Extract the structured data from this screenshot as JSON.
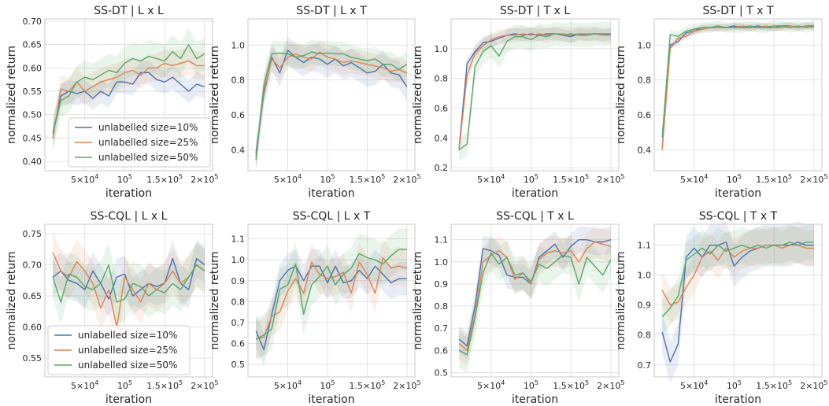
{
  "figure": {
    "xlabel": "iteration",
    "ylabel": "normalized return",
    "xticks": [
      {
        "x": 50000,
        "mant": "5×10",
        "exp": "4"
      },
      {
        "x": 100000,
        "mant": "10",
        "exp": "5"
      },
      {
        "x": 150000,
        "mant": "1.5×10",
        "exp": "5"
      },
      {
        "x": 200000,
        "mant": "2×10",
        "exp": "5"
      }
    ],
    "xlim": [
      0,
      210000
    ],
    "colors": {
      "s10": "#4c72b0",
      "s25": "#dd8452",
      "s50": "#55a868"
    },
    "legend_labels": [
      "unlabelled size=10%",
      "unlabelled size=25%",
      "unlabelled size=50%"
    ]
  },
  "chart_data": [
    {
      "type": "line",
      "title": "SS-DT | L x L",
      "xlabel": "iteration",
      "ylabel": "normalized return",
      "ylim": [
        0.38,
        0.705
      ],
      "yticks": [
        0.4,
        0.45,
        0.5,
        0.55,
        0.6,
        0.65,
        0.7
      ],
      "legend": "lower-center",
      "x": [
        10000,
        20000,
        30000,
        40000,
        50000,
        60000,
        70000,
        80000,
        90000,
        100000,
        110000,
        120000,
        130000,
        140000,
        150000,
        160000,
        170000,
        180000,
        190000,
        200000
      ],
      "series": [
        {
          "name": "unlabelled size=10%",
          "color": "#4c72b0",
          "band": 0.025,
          "values": [
            0.46,
            0.54,
            0.55,
            0.545,
            0.55,
            0.535,
            0.55,
            0.54,
            0.57,
            0.57,
            0.565,
            0.59,
            0.59,
            0.575,
            0.57,
            0.58,
            0.565,
            0.55,
            0.565,
            0.56
          ]
        },
        {
          "name": "unlabelled size=25%",
          "color": "#dd8452",
          "band": 0.03,
          "values": [
            0.45,
            0.555,
            0.55,
            0.57,
            0.55,
            0.56,
            0.57,
            0.575,
            0.58,
            0.59,
            0.595,
            0.585,
            0.6,
            0.6,
            0.61,
            0.605,
            0.61,
            0.615,
            0.605,
            0.605
          ]
        },
        {
          "name": "unlabelled size=50%",
          "color": "#55a868",
          "band": 0.035,
          "values": [
            0.46,
            0.53,
            0.54,
            0.57,
            0.58,
            0.575,
            0.585,
            0.595,
            0.59,
            0.61,
            0.62,
            0.615,
            0.625,
            0.62,
            0.615,
            0.635,
            0.62,
            0.65,
            0.62,
            0.63
          ]
        }
      ]
    },
    {
      "type": "line",
      "title": "SS-DT | L x T",
      "xlabel": "iteration",
      "ylabel": "normalized return",
      "ylim": [
        0.28,
        1.15
      ],
      "yticks": [
        0.4,
        0.6,
        0.8,
        1.0
      ],
      "x": [
        10000,
        20000,
        30000,
        40000,
        50000,
        60000,
        70000,
        80000,
        90000,
        100000,
        110000,
        120000,
        130000,
        140000,
        150000,
        160000,
        170000,
        180000,
        190000,
        200000
      ],
      "series": [
        {
          "name": "unlabelled size=10%",
          "color": "#4c72b0",
          "band": 0.08,
          "values": [
            0.38,
            0.72,
            0.93,
            0.84,
            0.97,
            0.93,
            0.9,
            0.93,
            0.92,
            0.89,
            0.92,
            0.88,
            0.9,
            0.87,
            0.84,
            0.85,
            0.89,
            0.84,
            0.83,
            0.76
          ]
        },
        {
          "name": "unlabelled size=25%",
          "color": "#dd8452",
          "band": 0.07,
          "values": [
            0.36,
            0.74,
            0.92,
            0.87,
            0.93,
            0.95,
            0.93,
            0.92,
            0.96,
            0.93,
            0.92,
            0.9,
            0.91,
            0.9,
            0.89,
            0.88,
            0.87,
            0.85,
            0.86,
            0.84
          ]
        },
        {
          "name": "unlabelled size=50%",
          "color": "#55a868",
          "band": 0.07,
          "values": [
            0.34,
            0.77,
            0.95,
            0.955,
            0.95,
            0.93,
            0.94,
            0.96,
            0.95,
            0.955,
            0.95,
            0.95,
            0.93,
            0.92,
            0.91,
            0.92,
            0.89,
            0.89,
            0.86,
            0.89
          ]
        }
      ]
    },
    {
      "type": "line",
      "title": "SS-DT | T x L",
      "xlabel": "iteration",
      "ylabel": "normalized return",
      "ylim": [
        0.18,
        1.2
      ],
      "yticks": [
        0.2,
        0.4,
        0.6,
        0.8,
        1.0
      ],
      "x": [
        10000,
        20000,
        30000,
        40000,
        50000,
        60000,
        70000,
        80000,
        90000,
        100000,
        110000,
        120000,
        130000,
        140000,
        150000,
        160000,
        170000,
        180000,
        190000,
        200000
      ],
      "series": [
        {
          "name": "unlabelled size=10%",
          "color": "#4c72b0",
          "band": 0.04,
          "values": [
            0.33,
            0.9,
            0.98,
            1.04,
            1.05,
            1.07,
            1.09,
            1.1,
            1.09,
            1.1,
            1.09,
            1.1,
            1.1,
            1.09,
            1.08,
            1.1,
            1.09,
            1.1,
            1.09,
            1.1
          ]
        },
        {
          "name": "unlabelled size=25%",
          "color": "#dd8452",
          "band": 0.05,
          "values": [
            0.32,
            0.82,
            0.97,
            1.02,
            1.06,
            1.08,
            1.09,
            1.09,
            1.1,
            1.09,
            1.1,
            1.09,
            1.1,
            1.1,
            1.09,
            1.1,
            1.1,
            1.1,
            1.09,
            1.09
          ]
        },
        {
          "name": "unlabelled size=50%",
          "color": "#55a868",
          "band": 0.08,
          "values": [
            0.32,
            0.36,
            0.88,
            0.98,
            1.02,
            0.95,
            1.05,
            1.08,
            1.08,
            1.06,
            1.09,
            1.08,
            1.1,
            1.09,
            1.1,
            1.09,
            1.09,
            1.1,
            1.1,
            1.1
          ]
        }
      ]
    },
    {
      "type": "line",
      "title": "SS-DT | T x T",
      "xlabel": "iteration",
      "ylabel": "normalized return",
      "ylim": [
        0.28,
        1.15
      ],
      "yticks": [
        0.4,
        0.6,
        0.8,
        1.0
      ],
      "x": [
        10000,
        20000,
        30000,
        40000,
        50000,
        60000,
        70000,
        80000,
        90000,
        100000,
        110000,
        120000,
        130000,
        140000,
        150000,
        160000,
        170000,
        180000,
        190000,
        200000
      ],
      "series": [
        {
          "name": "unlabelled size=10%",
          "color": "#4c72b0",
          "band": 0.02,
          "values": [
            0.4,
            1.0,
            1.02,
            1.07,
            1.08,
            1.1,
            1.1,
            1.1,
            1.1,
            1.11,
            1.1,
            1.1,
            1.11,
            1.1,
            1.1,
            1.11,
            1.11,
            1.1,
            1.11,
            1.11
          ]
        },
        {
          "name": "unlabelled size=25%",
          "color": "#dd8452",
          "band": 0.02,
          "values": [
            0.4,
            0.98,
            1.04,
            1.05,
            1.08,
            1.09,
            1.1,
            1.1,
            1.1,
            1.1,
            1.11,
            1.1,
            1.1,
            1.11,
            1.1,
            1.1,
            1.11,
            1.1,
            1.11,
            1.1
          ]
        },
        {
          "name": "unlabelled size=50%",
          "color": "#55a868",
          "band": 0.03,
          "values": [
            0.47,
            1.06,
            1.05,
            1.08,
            1.09,
            1.1,
            1.1,
            1.11,
            1.1,
            1.1,
            1.1,
            1.11,
            1.1,
            1.1,
            1.11,
            1.11,
            1.1,
            1.11,
            1.1,
            1.11
          ]
        }
      ]
    },
    {
      "type": "line",
      "title": "SS-CQL | L x L",
      "xlabel": "iteration",
      "ylabel": "normalized return",
      "ylim": [
        0.52,
        0.765
      ],
      "yticks": [
        0.55,
        0.6,
        0.65,
        0.7,
        0.75
      ],
      "legend": "lower-left",
      "x": [
        10000,
        20000,
        30000,
        40000,
        50000,
        60000,
        70000,
        80000,
        90000,
        100000,
        110000,
        120000,
        130000,
        140000,
        150000,
        160000,
        170000,
        180000,
        190000,
        200000
      ],
      "series": [
        {
          "name": "unlabelled size=10%",
          "color": "#4c72b0",
          "band": 0.03,
          "values": [
            0.68,
            0.69,
            0.675,
            0.67,
            0.66,
            0.69,
            0.67,
            0.645,
            0.68,
            0.685,
            0.65,
            0.66,
            0.67,
            0.665,
            0.67,
            0.71,
            0.67,
            0.66,
            0.71,
            0.7
          ]
        },
        {
          "name": "unlabelled size=25%",
          "color": "#dd8452",
          "band": 0.035,
          "values": [
            0.72,
            0.69,
            0.68,
            0.705,
            0.69,
            0.67,
            0.63,
            0.66,
            0.6,
            0.68,
            0.66,
            0.64,
            0.67,
            0.66,
            0.67,
            0.69,
            0.67,
            0.68,
            0.7,
            0.69
          ]
        },
        {
          "name": "unlabelled size=50%",
          "color": "#55a868",
          "band": 0.035,
          "values": [
            0.68,
            0.64,
            0.685,
            0.68,
            0.665,
            0.66,
            0.67,
            0.7,
            0.64,
            0.645,
            0.67,
            0.665,
            0.65,
            0.66,
            0.655,
            0.67,
            0.66,
            0.68,
            0.7,
            0.69
          ]
        }
      ]
    },
    {
      "type": "line",
      "title": "SS-CQL | L x T",
      "xlabel": "iteration",
      "ylabel": "normalized return",
      "ylim": [
        0.44,
        1.17
      ],
      "yticks": [
        0.5,
        0.6,
        0.7,
        0.8,
        0.9,
        1.0,
        1.1
      ],
      "x": [
        10000,
        20000,
        30000,
        40000,
        50000,
        60000,
        70000,
        80000,
        90000,
        100000,
        110000,
        120000,
        130000,
        140000,
        150000,
        160000,
        170000,
        180000,
        190000,
        200000
      ],
      "series": [
        {
          "name": "unlabelled size=10%",
          "color": "#4c72b0",
          "band": 0.08,
          "values": [
            0.66,
            0.57,
            0.74,
            0.9,
            0.95,
            0.97,
            0.9,
            0.97,
            0.97,
            0.89,
            0.97,
            0.89,
            0.9,
            0.95,
            0.91,
            0.97,
            0.93,
            0.89,
            0.91,
            0.91
          ]
        },
        {
          "name": "unlabelled size=25%",
          "color": "#dd8452",
          "band": 0.09,
          "values": [
            0.62,
            0.63,
            0.73,
            0.75,
            0.85,
            0.91,
            0.84,
            0.99,
            0.93,
            0.91,
            0.92,
            0.94,
            0.84,
            0.99,
            0.93,
            0.84,
            1.01,
            0.96,
            0.97,
            0.96
          ]
        },
        {
          "name": "unlabelled size=50%",
          "color": "#55a868",
          "band": 0.1,
          "values": [
            0.62,
            0.64,
            0.67,
            0.86,
            0.88,
            0.98,
            0.74,
            0.88,
            0.92,
            0.97,
            0.88,
            0.93,
            0.96,
            1.03,
            1.01,
            1.0,
            0.98,
            1.02,
            1.05,
            1.05
          ]
        }
      ]
    },
    {
      "type": "line",
      "title": "SS-CQL | T x L",
      "xlabel": "iteration",
      "ylabel": "normalized return",
      "ylim": [
        0.48,
        1.17
      ],
      "yticks": [
        0.5,
        0.6,
        0.7,
        0.8,
        0.9,
        1.0,
        1.1
      ],
      "x": [
        10000,
        20000,
        30000,
        40000,
        50000,
        60000,
        70000,
        80000,
        90000,
        100000,
        110000,
        120000,
        130000,
        140000,
        150000,
        160000,
        170000,
        180000,
        190000,
        200000
      ],
      "series": [
        {
          "name": "unlabelled size=10%",
          "color": "#4c72b0",
          "band": 0.06,
          "values": [
            0.65,
            0.62,
            0.8,
            1.06,
            1.05,
            1.03,
            0.94,
            0.93,
            0.93,
            0.9,
            1.02,
            1.05,
            1.08,
            1.02,
            1.07,
            1.1,
            1.1,
            1.09,
            1.09,
            1.1
          ]
        },
        {
          "name": "unlabelled size=25%",
          "color": "#dd8452",
          "band": 0.07,
          "values": [
            0.63,
            0.6,
            0.76,
            1.0,
            1.03,
            1.05,
            1.02,
            0.92,
            0.95,
            0.9,
            1.01,
            1.04,
            1.05,
            1.04,
            1.05,
            1.0,
            1.06,
            1.09,
            1.08,
            1.07
          ]
        },
        {
          "name": "unlabelled size=50%",
          "color": "#55a868",
          "band": 0.08,
          "values": [
            0.6,
            0.58,
            0.75,
            0.95,
            1.04,
            0.99,
            1.02,
            0.94,
            0.95,
            0.91,
            0.99,
            0.97,
            1.0,
            1.03,
            1.02,
            0.9,
            1.02,
            0.98,
            0.94,
            1.01
          ]
        }
      ]
    },
    {
      "type": "line",
      "title": "SS-CQL | T x T",
      "xlabel": "iteration",
      "ylabel": "normalized return",
      "ylim": [
        0.66,
        1.17
      ],
      "yticks": [
        0.7,
        0.8,
        0.9,
        1.0,
        1.1
      ],
      "x": [
        10000,
        20000,
        30000,
        40000,
        50000,
        60000,
        70000,
        80000,
        90000,
        100000,
        110000,
        120000,
        130000,
        140000,
        150000,
        160000,
        170000,
        180000,
        190000,
        200000
      ],
      "series": [
        {
          "name": "unlabelled size=10%",
          "color": "#4c72b0",
          "band": 0.07,
          "values": [
            0.81,
            0.71,
            0.77,
            1.06,
            1.09,
            1.06,
            1.1,
            1.1,
            1.11,
            1.03,
            1.06,
            1.08,
            1.09,
            1.1,
            1.1,
            1.1,
            1.1,
            1.11,
            1.1,
            1.1
          ]
        },
        {
          "name": "unlabelled size=25%",
          "color": "#dd8452",
          "band": 0.06,
          "values": [
            0.95,
            0.9,
            0.91,
            0.96,
            1.0,
            1.06,
            1.08,
            1.05,
            1.09,
            1.06,
            1.08,
            1.09,
            1.09,
            1.1,
            1.1,
            1.09,
            1.1,
            1.1,
            1.09,
            1.09
          ]
        },
        {
          "name": "unlabelled size=50%",
          "color": "#55a868",
          "band": 0.06,
          "values": [
            0.86,
            0.89,
            0.93,
            1.05,
            1.07,
            1.09,
            1.07,
            1.1,
            1.08,
            1.09,
            1.1,
            1.09,
            1.1,
            1.09,
            1.1,
            1.1,
            1.11,
            1.1,
            1.11,
            1.11
          ]
        }
      ]
    }
  ]
}
